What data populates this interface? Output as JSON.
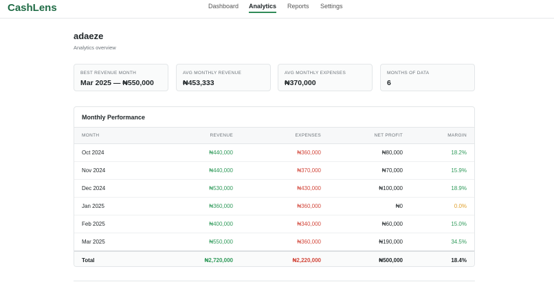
{
  "nav": {
    "brand": "CashLens",
    "links": [
      "Dashboard",
      "Analytics",
      "Reports",
      "Settings"
    ]
  },
  "header": {
    "title": "adaeze",
    "subtitle": "Analytics overview"
  },
  "cards": [
    {
      "label": "BEST REVENUE MONTH",
      "value": "Mar 2025 — ₦550,000"
    },
    {
      "label": "AVG MONTHLY REVENUE",
      "value": "₦453,333"
    },
    {
      "label": "AVG MONTHLY EXPENSES",
      "value": "₦370,000"
    },
    {
      "label": "MONTHS OF DATA",
      "value": "6"
    }
  ],
  "table": {
    "title": "Monthly Performance",
    "columns": [
      "MONTH",
      "REVENUE",
      "EXPENSES",
      "NET PROFIT",
      "MARGIN"
    ],
    "rows": [
      [
        "Oct 2024",
        "₦440,000",
        "₦360,000",
        "₦80,000",
        "18.2%"
      ],
      [
        "Nov 2024",
        "₦440,000",
        "₦370,000",
        "₦70,000",
        "15.9%"
      ],
      [
        "Dec 2024",
        "₦530,000",
        "₦430,000",
        "₦100,000",
        "18.9%"
      ],
      [
        "Jan 2025",
        "₦360,000",
        "₦360,000",
        "₦0",
        "0.0%"
      ],
      [
        "Feb 2025",
        "₦400,000",
        "₦340,000",
        "₦60,000",
        "15.0%"
      ],
      [
        "Mar 2025",
        "₦550,000",
        "₦360,000",
        "₦190,000",
        "34.5%"
      ]
    ],
    "total": [
      "Total",
      "₦2,720,000",
      "₦2,220,000",
      "₦500,000",
      "18.4%"
    ]
  }
}
